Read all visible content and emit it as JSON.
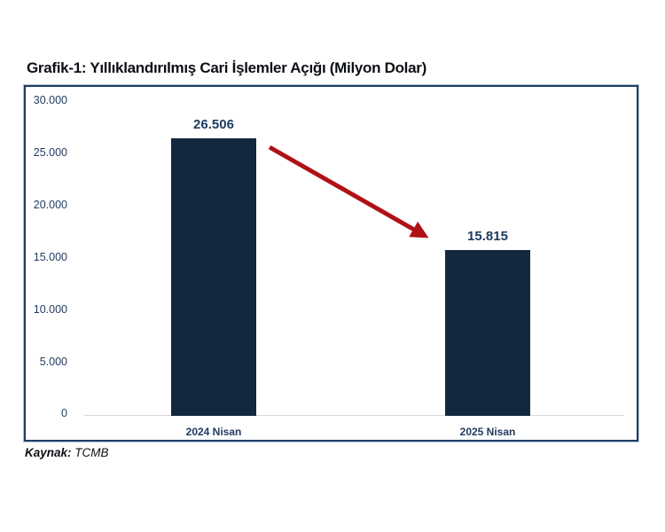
{
  "title": "Grafik-1: Yıllıklandırılmış Cari İşlemler Açığı (Milyon Dolar)",
  "source": {
    "label": "Kaynak:",
    "value": "TCMB"
  },
  "chart_data": {
    "type": "bar",
    "title": "Grafik-1: Yıllıklandırılmış Cari İşlemler Açığı (Milyon Dolar)",
    "categories": [
      "2024 Nisan",
      "2025 Nisan"
    ],
    "values": [
      26506,
      15815
    ],
    "value_labels": [
      "26.506",
      "15.815"
    ],
    "xlabel": "",
    "ylabel": "",
    "ylim": [
      0,
      30000
    ],
    "ytick_step": 5000,
    "ytick_labels": [
      "30.000",
      "25.000",
      "20.000",
      "15.000",
      "10.000",
      "5.000",
      "0"
    ],
    "grid": "zero-baseline-only",
    "legend_position": "none",
    "annotation": "dark red arrow from top of 2024 Nisan bar down to top of 2025 Nisan bar indicating decline"
  },
  "colors": {
    "bar": "#13273f",
    "arrow": "#b01116",
    "axis_labels": "#1f3a5f",
    "baseline": "#d9d9d9",
    "chart_border": "#1e3f66",
    "title_text": "#0c0f14"
  }
}
